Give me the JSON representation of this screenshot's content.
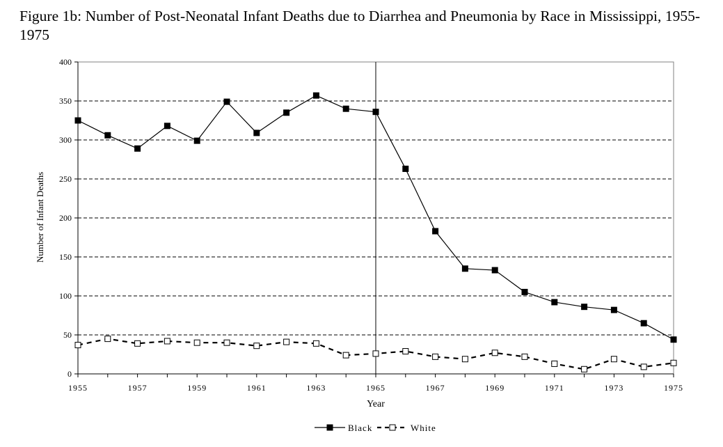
{
  "page_title": "Figure 1b: Number of Post-Neonatal Infant Deaths due to Diarrhea and Pneumonia by Race in Mississippi, 1955-1975",
  "chart_data": {
    "type": "line",
    "title": "Figure 1b: Number of Post-Neonatal Infant Deaths due to Diarrhea and Pneumonia by Race in Mississippi, 1955-1975",
    "xlabel": "Year",
    "ylabel": "Number of Infant Deaths",
    "x": [
      1955,
      1956,
      1957,
      1958,
      1959,
      1960,
      1961,
      1962,
      1963,
      1964,
      1965,
      1966,
      1967,
      1968,
      1969,
      1970,
      1971,
      1972,
      1973,
      1974,
      1975
    ],
    "xlim": [
      1955,
      1975
    ],
    "ylim": [
      0,
      400
    ],
    "x_ticks": [
      "1955",
      "1957",
      "1959",
      "1961",
      "1963",
      "1965",
      "1967",
      "1969",
      "1971",
      "1973",
      "1975"
    ],
    "y_ticks": [
      "0",
      "50",
      "100",
      "150",
      "200",
      "250",
      "300",
      "350",
      "400"
    ],
    "grid": "horizontal dashed",
    "reference_line_x": 1965,
    "legend_position": "bottom-center",
    "series": [
      {
        "name": "Black",
        "style": "solid line, filled square markers",
        "values": [
          325,
          306,
          289,
          318,
          299,
          349,
          309,
          335,
          357,
          340,
          336,
          263,
          183,
          135,
          133,
          105,
          92,
          86,
          82,
          65,
          44
        ]
      },
      {
        "name": "White",
        "style": "dashed line, open square markers",
        "values": [
          37,
          45,
          39,
          42,
          40,
          40,
          36,
          41,
          39,
          24,
          26,
          29,
          22,
          19,
          27,
          22,
          13,
          6,
          19,
          9,
          14
        ]
      }
    ]
  }
}
